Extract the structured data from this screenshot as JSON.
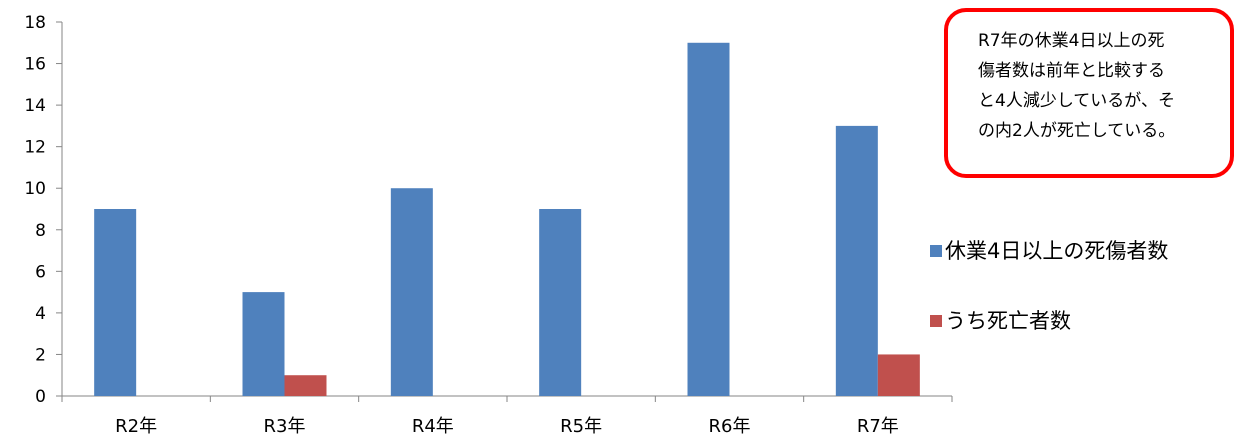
{
  "chart_data": {
    "type": "bar",
    "categories": [
      "R2年",
      "R3年",
      "R4年",
      "R5年",
      "R6年",
      "R7年"
    ],
    "series": [
      {
        "name": "休業4日以上の死傷者数",
        "values": [
          9,
          5,
          10,
          9,
          17,
          13
        ],
        "color": "#4f81bd"
      },
      {
        "name": "うち死亡者数",
        "values": [
          0,
          1,
          0,
          0,
          0,
          2
        ],
        "color": "#c0504d"
      }
    ],
    "ylim": [
      0,
      18
    ],
    "yticks": [
      0,
      2,
      4,
      6,
      8,
      10,
      12,
      14,
      16,
      18
    ],
    "grid": false,
    "legend": "right",
    "xlabel": "",
    "ylabel": ""
  },
  "annotation": {
    "lines": [
      "R7年の休業4日以上の死",
      "傷者数は前年と比較する",
      "と4人減少しているが、そ",
      "の内2人が死亡している。"
    ],
    "border_color": "#ff0000"
  }
}
